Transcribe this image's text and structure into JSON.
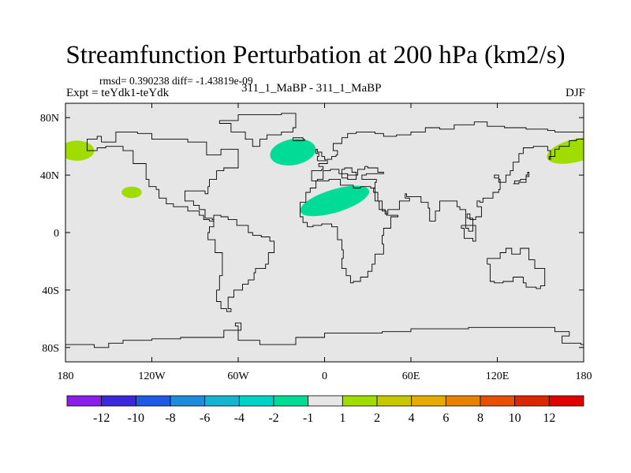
{
  "title": "Streamfunction Perturbation at 200 hPa (km2/s)",
  "stats": "rmsd= 0.390238 diff= -1.43819e-09",
  "experiment": "Expt = teYdk1-teYdk",
  "case": "311_1_MaBP - 311_1_MaBP",
  "season": "DJF",
  "map": {
    "lon_range": [
      -180,
      180
    ],
    "lat_range": [
      -90,
      90
    ],
    "background_color": "#e6e6e6",
    "lon_ticks": [
      {
        "lon": -180,
        "label": "180"
      },
      {
        "lon": -120,
        "label": "120W"
      },
      {
        "lon": -60,
        "label": "60W"
      },
      {
        "lon": 0,
        "label": "0"
      },
      {
        "lon": 60,
        "label": "60E"
      },
      {
        "lon": 120,
        "label": "120E"
      },
      {
        "lon": 180,
        "label": "180"
      }
    ],
    "lat_ticks": [
      {
        "lat": 80,
        "label": "80N"
      },
      {
        "lat": 40,
        "label": "40N"
      },
      {
        "lat": 0,
        "label": "0"
      },
      {
        "lat": -40,
        "label": "40S"
      },
      {
        "lat": -80,
        "label": "80S"
      }
    ],
    "anomalies": [
      {
        "name": "blob-2-nw",
        "lon": -172,
        "lat": 57,
        "rlon": 12,
        "rlat": 7,
        "rot": 0,
        "value": "2",
        "color": "#a0dc00"
      },
      {
        "name": "blob-2-pac",
        "lon": -134,
        "lat": 28,
        "rlon": 7,
        "rlat": 4,
        "rot": 0,
        "value": "2",
        "color": "#a0dc00"
      },
      {
        "name": "blob-neg2-n",
        "lon": -22,
        "lat": 56,
        "rlon": 16,
        "rlat": 9,
        "rot": -10,
        "value": "-2",
        "color": "#00dc96"
      },
      {
        "name": "blob-neg2-c",
        "lon": 7,
        "lat": 22,
        "rlon": 25,
        "rlat": 8,
        "rot": -17,
        "value": "-2",
        "color": "#00dc96"
      },
      {
        "name": "blob-2-ne",
        "lon": 174,
        "lat": 57,
        "rlon": 20,
        "rlat": 8,
        "rot": -14,
        "value": "2",
        "color": "#a0dc00"
      }
    ],
    "coastline": [
      [
        [
          -155,
          63
        ],
        [
          -145,
          70
        ],
        [
          -130,
          69
        ],
        [
          -120,
          65
        ],
        [
          -95,
          63
        ],
        [
          -82,
          54
        ],
        [
          -72,
          58
        ],
        [
          -60,
          50
        ],
        [
          -60,
          45
        ],
        [
          -70,
          43
        ],
        [
          -75,
          37
        ],
        [
          -80,
          32
        ],
        [
          -81,
          27
        ],
        [
          -83,
          29
        ],
        [
          -90,
          29
        ],
        [
          -97,
          27
        ],
        [
          -97,
          22
        ],
        [
          -91,
          19
        ],
        [
          -87,
          16
        ],
        [
          -83,
          10
        ],
        [
          -78,
          9
        ],
        [
          -77,
          4
        ],
        [
          -80,
          0
        ],
        [
          -81,
          -5
        ],
        [
          -76,
          -14
        ],
        [
          -71,
          -18
        ],
        [
          -71,
          -30
        ],
        [
          -73,
          -40
        ],
        [
          -75,
          -48
        ],
        [
          -72,
          -53
        ],
        [
          -68,
          -55
        ],
        [
          -65,
          -53
        ],
        [
          -67,
          -45
        ],
        [
          -63,
          -40
        ],
        [
          -57,
          -36
        ],
        [
          -53,
          -33
        ],
        [
          -49,
          -28
        ],
        [
          -48,
          -25
        ],
        [
          -41,
          -22
        ],
        [
          -39,
          -14
        ],
        [
          -35,
          -6
        ],
        [
          -38,
          -3
        ],
        [
          -44,
          -2
        ],
        [
          -50,
          0
        ],
        [
          -53,
          5
        ],
        [
          -61,
          9
        ],
        [
          -67,
          11
        ],
        [
          -72,
          12
        ],
        [
          -77,
          8
        ],
        [
          -80,
          9
        ],
        [
          -84,
          12
        ],
        [
          -87,
          15
        ],
        [
          -95,
          18
        ],
        [
          -105,
          20
        ],
        [
          -110,
          24
        ],
        [
          -115,
          30
        ],
        [
          -117,
          32
        ],
        [
          -122,
          37
        ],
        [
          -124,
          42
        ],
        [
          -124,
          48
        ],
        [
          -133,
          57
        ],
        [
          -140,
          60
        ],
        [
          -152,
          59
        ],
        [
          -158,
          57
        ],
        [
          -165,
          60
        ],
        [
          -165,
          65
        ],
        [
          -158,
          67
        ],
        [
          -155,
          63
        ]
      ],
      [
        [
          -17,
          15
        ],
        [
          -17,
          21
        ],
        [
          -13,
          28
        ],
        [
          -10,
          31
        ],
        [
          -6,
          36
        ],
        [
          3,
          37
        ],
        [
          10,
          37
        ],
        [
          11,
          33
        ],
        [
          20,
          31
        ],
        [
          25,
          32
        ],
        [
          32,
          31
        ],
        [
          35,
          28
        ],
        [
          37,
          22
        ],
        [
          40,
          15
        ],
        [
          43,
          12
        ],
        [
          51,
          11
        ],
        [
          46,
          3
        ],
        [
          41,
          -2
        ],
        [
          40,
          -8
        ],
        [
          41,
          -15
        ],
        [
          35,
          -22
        ],
        [
          33,
          -27
        ],
        [
          30,
          -31
        ],
        [
          25,
          -34
        ],
        [
          20,
          -35
        ],
        [
          18,
          -30
        ],
        [
          15,
          -25
        ],
        [
          12,
          -18
        ],
        [
          13,
          -12
        ],
        [
          12,
          -5
        ],
        [
          9,
          0
        ],
        [
          9,
          4
        ],
        [
          5,
          6
        ],
        [
          -2,
          5
        ],
        [
          -8,
          4
        ],
        [
          -12,
          7
        ],
        [
          -15,
          11
        ],
        [
          -17,
          15
        ]
      ],
      [
        [
          -9,
          37
        ],
        [
          -9,
          43
        ],
        [
          -2,
          44
        ],
        [
          -1,
          46
        ],
        [
          -4,
          48
        ],
        [
          2,
          51
        ],
        [
          5,
          53
        ],
        [
          8,
          54
        ],
        [
          9,
          57
        ],
        [
          6,
          58
        ],
        [
          6,
          62
        ],
        [
          12,
          66
        ],
        [
          16,
          69
        ],
        [
          22,
          70
        ],
        [
          30,
          70
        ],
        [
          35,
          69
        ],
        [
          41,
          67
        ],
        [
          50,
          68
        ],
        [
          60,
          70
        ],
        [
          70,
          73
        ],
        [
          80,
          72
        ],
        [
          90,
          75
        ],
        [
          104,
          77
        ],
        [
          113,
          74
        ],
        [
          125,
          73
        ],
        [
          140,
          72
        ],
        [
          155,
          71
        ],
        [
          160,
          70
        ],
        [
          170,
          70
        ],
        [
          180,
          69
        ],
        [
          180,
          65
        ],
        [
          175,
          64
        ],
        [
          170,
          60
        ],
        [
          163,
          58
        ],
        [
          160,
          53
        ],
        [
          156,
          51
        ],
        [
          157,
          57
        ],
        [
          155,
          60
        ],
        [
          145,
          59
        ],
        [
          138,
          55
        ],
        [
          135,
          49
        ],
        [
          131,
          43
        ],
        [
          129,
          40
        ],
        [
          126,
          38
        ],
        [
          126,
          35
        ],
        [
          121,
          40
        ],
        [
          118,
          38
        ],
        [
          121,
          37
        ],
        [
          122,
          30
        ],
        [
          121,
          28
        ],
        [
          117,
          24
        ],
        [
          110,
          21
        ],
        [
          108,
          22
        ],
        [
          106,
          18
        ],
        [
          109,
          11
        ],
        [
          105,
          9
        ],
        [
          101,
          13
        ],
        [
          99,
          10
        ],
        [
          103,
          1
        ],
        [
          100,
          3
        ],
        [
          98,
          8
        ],
        [
          98,
          16
        ],
        [
          94,
          18
        ],
        [
          92,
          22
        ],
        [
          88,
          22
        ],
        [
          80,
          15
        ],
        [
          77,
          8
        ],
        [
          73,
          17
        ],
        [
          72,
          21
        ],
        [
          67,
          25
        ],
        [
          61,
          25
        ],
        [
          57,
          27
        ],
        [
          56,
          24
        ],
        [
          59,
          22
        ],
        [
          52,
          16
        ],
        [
          44,
          13
        ],
        [
          42,
          16
        ],
        [
          38,
          22
        ],
        [
          35,
          28
        ],
        [
          34,
          31
        ],
        [
          35,
          35
        ],
        [
          36,
          37
        ],
        [
          27,
          37
        ],
        [
          26,
          40
        ],
        [
          29,
          41
        ],
        [
          38,
          41
        ],
        [
          41,
          42
        ],
        [
          37,
          45
        ],
        [
          30,
          46
        ],
        [
          28,
          44
        ],
        [
          23,
          40
        ],
        [
          19,
          40
        ],
        [
          16,
          38
        ],
        [
          12,
          44
        ],
        [
          14,
          45
        ],
        [
          19,
          42
        ],
        [
          22,
          37
        ],
        [
          16,
          41
        ],
        [
          10,
          44
        ],
        [
          4,
          43
        ],
        [
          -1,
          37
        ],
        [
          -5,
          36
        ],
        [
          -9,
          37
        ]
      ],
      [
        [
          -5,
          50
        ],
        [
          1,
          51
        ],
        [
          0,
          53
        ],
        [
          -2,
          56
        ],
        [
          -5,
          58
        ],
        [
          -6,
          55
        ],
        [
          -4,
          53
        ],
        [
          -5,
          50
        ]
      ],
      [
        [
          -22,
          64
        ],
        [
          -14,
          65
        ],
        [
          -15,
          66
        ],
        [
          -22,
          66
        ],
        [
          -22,
          64
        ]
      ],
      [
        [
          -73,
          78
        ],
        [
          -60,
          82
        ],
        [
          -30,
          83
        ],
        [
          -20,
          80
        ],
        [
          -20,
          73
        ],
        [
          -22,
          70
        ],
        [
          -30,
          68
        ],
        [
          -40,
          65
        ],
        [
          -45,
          60
        ],
        [
          -50,
          65
        ],
        [
          -55,
          70
        ],
        [
          -65,
          76
        ],
        [
          -73,
          78
        ]
      ],
      [
        [
          113,
          -22
        ],
        [
          115,
          -34
        ],
        [
          118,
          -35
        ],
        [
          124,
          -34
        ],
        [
          131,
          -31
        ],
        [
          138,
          -35
        ],
        [
          140,
          -38
        ],
        [
          147,
          -39
        ],
        [
          150,
          -37
        ],
        [
          153,
          -30
        ],
        [
          153,
          -25
        ],
        [
          146,
          -19
        ],
        [
          142,
          -11
        ],
        [
          136,
          -12
        ],
        [
          136,
          -15
        ],
        [
          130,
          -11
        ],
        [
          126,
          -14
        ],
        [
          122,
          -18
        ],
        [
          113,
          -22
        ]
      ],
      [
        [
          95,
          5
        ],
        [
          105,
          -6
        ],
        [
          103,
          -4
        ],
        [
          97,
          3
        ],
        [
          95,
          5
        ]
      ],
      [
        [
          141,
          42
        ],
        [
          142,
          39
        ],
        [
          140,
          35
        ],
        [
          135,
          34
        ],
        [
          131,
          34
        ],
        [
          132,
          36
        ],
        [
          136,
          37
        ],
        [
          140,
          40
        ],
        [
          141,
          42
        ]
      ],
      [
        [
          -180,
          -78
        ],
        [
          -170,
          -78
        ],
        [
          -160,
          -80
        ],
        [
          -150,
          -77
        ],
        [
          -140,
          -75
        ],
        [
          -120,
          -74
        ],
        [
          -100,
          -73
        ],
        [
          -80,
          -73
        ],
        [
          -70,
          -68
        ],
        [
          -58,
          -63
        ],
        [
          -62,
          -65
        ],
        [
          -60,
          -70
        ],
        [
          -60,
          -75
        ],
        [
          -45,
          -78
        ],
        [
          -30,
          -78
        ],
        [
          -20,
          -73
        ],
        [
          0,
          -70
        ],
        [
          20,
          -70
        ],
        [
          40,
          -69
        ],
        [
          60,
          -67
        ],
        [
          80,
          -67
        ],
        [
          100,
          -66
        ],
        [
          120,
          -66
        ],
        [
          140,
          -66
        ],
        [
          160,
          -69
        ],
        [
          170,
          -72
        ],
        [
          165,
          -77
        ],
        [
          178,
          -78
        ],
        [
          180,
          -78
        ]
      ]
    ]
  },
  "colorbar": {
    "colors": [
      "#8c1eeb",
      "#3c28dc",
      "#1e5ae6",
      "#1e8cdc",
      "#14b4d2",
      "#00d2c8",
      "#00dc96",
      "#e6e6e6",
      "#a0dc00",
      "#c8c800",
      "#e6aa00",
      "#e68200",
      "#e65000",
      "#dc2800",
      "#e10000"
    ],
    "labels": [
      "-12",
      "-10",
      "-8",
      "-6",
      "-4",
      "-2",
      "-1",
      "1",
      "2",
      "4",
      "6",
      "8",
      "10",
      "12"
    ]
  }
}
